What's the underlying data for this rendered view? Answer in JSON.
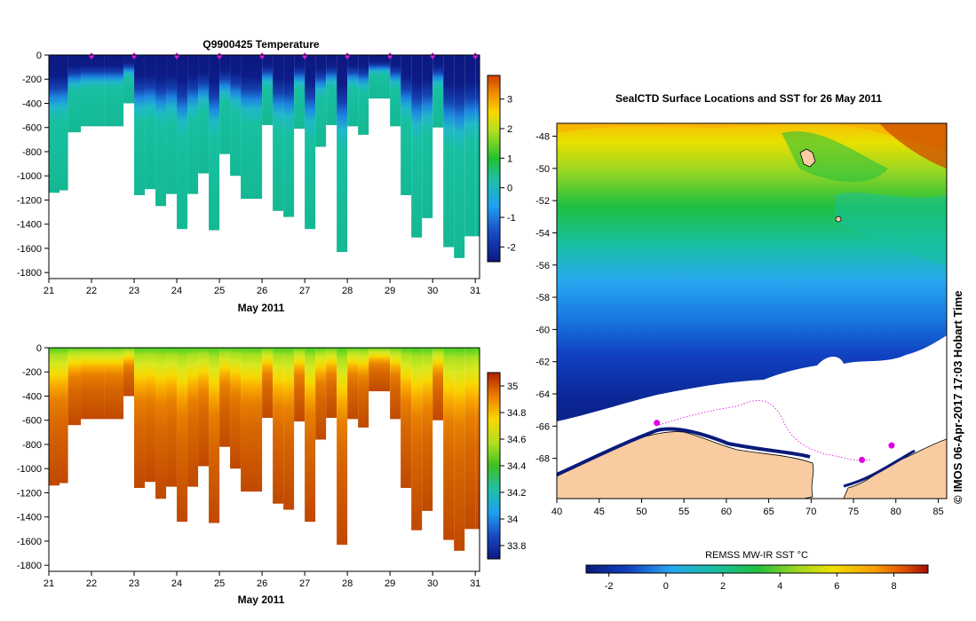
{
  "chart_data": [
    {
      "type": "heatmap",
      "title": "Q9900425  Temperature",
      "xlabel": "May 2011",
      "x_ticks": [
        "21",
        "22",
        "23",
        "24",
        "25",
        "26",
        "27",
        "28",
        "29",
        "30",
        "31"
      ],
      "x_range": [
        21,
        31.1
      ],
      "ylim": [
        -1850,
        0
      ],
      "y_ticks": [
        "0",
        "-200",
        "-400",
        "-600",
        "-800",
        "-1000",
        "-1200",
        "-1400",
        "-1600",
        "-1800"
      ],
      "profile_days": [
        21.0,
        21.25,
        21.45,
        21.75,
        22.3,
        22.75,
        23.0,
        23.25,
        23.5,
        23.75,
        24.0,
        24.25,
        24.5,
        24.75,
        25.0,
        25.25,
        25.5,
        26.0,
        26.25,
        26.5,
        26.75,
        27.0,
        27.25,
        27.5,
        27.75,
        28.0,
        28.25,
        28.5,
        29.0,
        29.25,
        29.5,
        29.75,
        30.0,
        30.25,
        30.5,
        30.75,
        31.0
      ],
      "profile_max_depth": [
        1140,
        1120,
        640,
        590,
        590,
        400,
        1160,
        1110,
        1250,
        1150,
        1440,
        1150,
        980,
        1450,
        820,
        1000,
        1190,
        580,
        1290,
        1340,
        610,
        1440,
        760,
        580,
        1630,
        590,
        660,
        360,
        590,
        1160,
        1510,
        1350,
        600,
        1590,
        1680,
        1500,
        1500
      ],
      "surface_markers_day": [
        22,
        23,
        24,
        25,
        26,
        27,
        28,
        29,
        30,
        31
      ],
      "colorbar_ticks": [
        "3",
        "2",
        "1",
        "0",
        "-1",
        "-2"
      ],
      "colorbar_range": [
        -2.5,
        3.8
      ]
    },
    {
      "type": "heatmap",
      "title": "",
      "xlabel": "May 2011",
      "x_ticks": [
        "21",
        "22",
        "23",
        "24",
        "25",
        "26",
        "27",
        "28",
        "29",
        "30",
        "31"
      ],
      "x_range": [
        21,
        31.1
      ],
      "ylim": [
        -1850,
        0
      ],
      "y_ticks": [
        "0",
        "-200",
        "-400",
        "-600",
        "-800",
        "-1000",
        "-1200",
        "-1400",
        "-1600",
        "-1800"
      ],
      "colorbar_ticks": [
        "35",
        "34.8",
        "34.6",
        "34.4",
        "34.2",
        "34",
        "33.8"
      ],
      "colorbar_range": [
        33.7,
        35.1
      ]
    },
    {
      "type": "heatmap",
      "title": "SealCTD Surface Locations and SST for 26 May 2011",
      "x_ticks": [
        "40",
        "45",
        "50",
        "55",
        "60",
        "65",
        "70",
        "75",
        "80",
        "85"
      ],
      "x_range": [
        40,
        86
      ],
      "y_ticks": [
        "-48",
        "-50",
        "-52",
        "-54",
        "-56",
        "-58",
        "-60",
        "-62",
        "-64",
        "-66",
        "-68"
      ],
      "y_range": [
        -70.5,
        -47.2
      ],
      "colorbar_label": "REMSS MW-IR SST °C",
      "colorbar_ticks": [
        "-2",
        "0",
        "2",
        "4",
        "6",
        "8"
      ],
      "colorbar_range": [
        -2.8,
        9.2
      ],
      "sealctd_positions": [
        [
          51.8,
          -65.8
        ],
        [
          76,
          -68.1
        ],
        [
          79.5,
          -67.2
        ]
      ],
      "colormap": [
        "#0a1a7a",
        "#1460d8",
        "#28a8f0",
        "#18c0a0",
        "#20c040",
        "#90d820",
        "#f0e000",
        "#f8a000",
        "#e85000",
        "#a01000"
      ],
      "land_color": "#f8cca0"
    }
  ],
  "credit": "©  IMOS 06-Apr-2017 17:03 Hobart Time"
}
